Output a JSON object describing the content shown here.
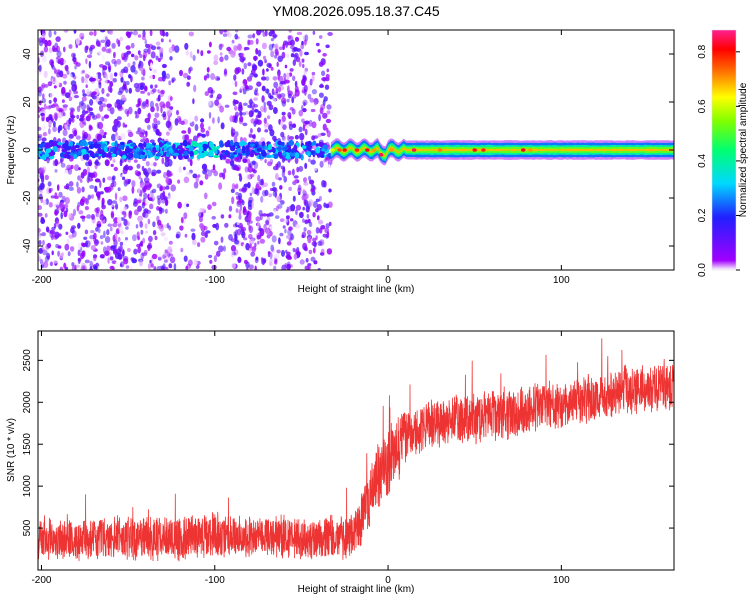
{
  "figure": {
    "title": "YM08.2026.095.18.37.C45"
  },
  "chart_data": [
    {
      "type": "heatmap",
      "title": "YM08.2026.095.18.37.C45",
      "xlabel": "Height of straight line (km)",
      "ylabel": "Frequency (Hz)",
      "xlim": [
        -202,
        165
      ],
      "ylim": [
        -50,
        50
      ],
      "xticks": [
        -200,
        -100,
        0,
        100
      ],
      "yticks": [
        -40,
        -20,
        0,
        20,
        40
      ],
      "x_tick_labels": [
        "-200",
        "-100",
        "0",
        "100"
      ],
      "y_tick_labels": [
        "-40",
        "-20",
        "0",
        "20",
        "40"
      ],
      "colorbar": {
        "label": "Normalized spectral amplitude",
        "range": [
          0,
          0.88
        ],
        "ticks": [
          0,
          0.2,
          0.4,
          0.6,
          0.8
        ],
        "tick_labels": [
          "0.0",
          "0.2",
          "0.4",
          "0.6",
          "0.8"
        ],
        "colormap": "rainbow (violet-blue-cyan-green-yellow-red-pink)"
      },
      "regions": [
        {
          "name": "noise",
          "x_range": [
            -202,
            -33
          ],
          "freq_range": [
            -50,
            50
          ],
          "amplitude_range": [
            0.0,
            0.15
          ]
        },
        {
          "name": "noise-band-near-zero",
          "x_range": [
            -202,
            -33
          ],
          "freq_range": [
            -3,
            3
          ],
          "amplitude_range": [
            0.1,
            0.35
          ]
        },
        {
          "name": "signal-line",
          "x_range": [
            -33,
            165
          ],
          "center_freq": 0,
          "half_width_hz": [
            2,
            4
          ],
          "peak_amplitude": 0.85
        }
      ]
    },
    {
      "type": "line",
      "xlabel": "Height of straight line (km)",
      "ylabel": "SNR (10 * v/v)",
      "xlim": [
        -202,
        165
      ],
      "ylim": [
        0,
        2850
      ],
      "xticks": [
        -200,
        -100,
        0,
        100
      ],
      "yticks": [
        500,
        1000,
        1500,
        2000,
        2500
      ],
      "x_tick_labels": [
        "-200",
        "-100",
        "0",
        "100"
      ],
      "y_tick_labels": [
        "500",
        "1000",
        "1500",
        "2000",
        "2500"
      ],
      "series": [
        {
          "name": "SNR",
          "color": "#ee3333",
          "x": [
            -202,
            -180,
            -160,
            -140,
            -120,
            -100,
            -80,
            -60,
            -40,
            -25,
            -18,
            -12,
            -6,
            0,
            6,
            12,
            20,
            30,
            40,
            50,
            60,
            70,
            80,
            90,
            100,
            110,
            120,
            130,
            140,
            150,
            165
          ],
          "y": [
            370,
            360,
            380,
            380,
            400,
            420,
            400,
            390,
            380,
            390,
            450,
            800,
            1100,
            1300,
            1450,
            1650,
            1700,
            1750,
            1800,
            1800,
            1850,
            1850,
            1900,
            1950,
            1950,
            2050,
            2050,
            2100,
            2150,
            2150,
            2200
          ],
          "noise_spread": [
            280,
            280,
            280,
            280,
            300,
            300,
            280,
            280,
            300,
            300,
            300,
            400,
            450,
            450,
            420,
            350,
            330,
            330,
            330,
            330,
            330,
            330,
            330,
            330,
            330,
            330,
            330,
            330,
            330,
            330,
            330
          ]
        }
      ]
    }
  ]
}
